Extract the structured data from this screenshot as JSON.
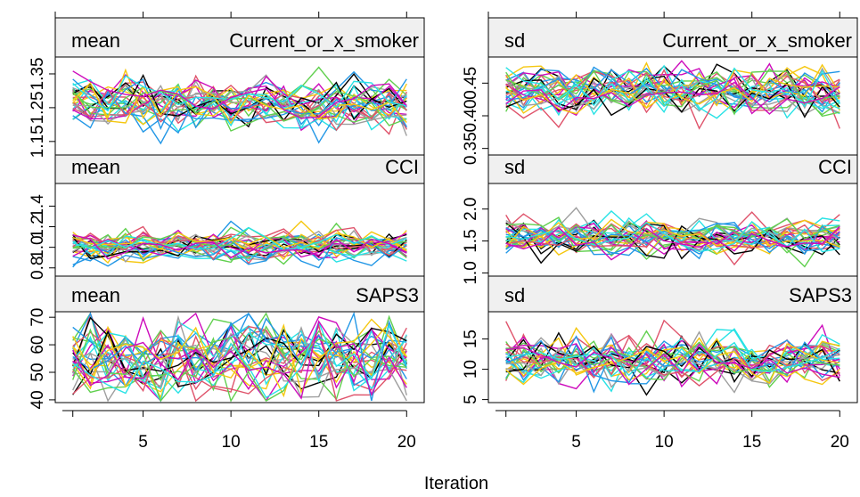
{
  "figure": {
    "xlabel": "Iteration"
  },
  "chart_data": [
    {
      "type": "line",
      "stat": "mean",
      "variable": "Current_or_x_smoker",
      "x_ticks": [
        5,
        10,
        15,
        20
      ],
      "y_ticks": [
        1.15,
        1.25,
        1.35
      ],
      "y_tick_labels": [
        "1.15",
        "1.25",
        "1.35"
      ],
      "ylim": [
        1.11,
        1.4
      ],
      "center": 1.26,
      "spread": 0.035
    },
    {
      "type": "line",
      "stat": "sd",
      "variable": "Current_or_x_smoker",
      "x_ticks": [
        5,
        10,
        15,
        20
      ],
      "y_ticks": [
        0.35,
        0.4,
        0.45
      ],
      "y_tick_labels": [
        "0.35",
        "0.40",
        "0.45"
      ],
      "ylim": [
        0.34,
        0.49
      ],
      "center": 0.438,
      "spread": 0.018
    },
    {
      "type": "line",
      "stat": "mean",
      "variable": "CCI",
      "x_ticks": [
        5,
        10,
        15,
        20
      ],
      "y_ticks": [
        0.8,
        1.0,
        1.2,
        1.4
      ],
      "y_tick_labels": [
        "0.8",
        "1.0",
        "1.2",
        "1.4"
      ],
      "ylim": [
        0.72,
        1.62
      ],
      "center": 1.02,
      "spread": 0.07
    },
    {
      "type": "line",
      "stat": "sd",
      "variable": "CCI",
      "x_ticks": [
        5,
        10,
        15,
        20
      ],
      "y_ticks": [
        1.0,
        1.5,
        2.0
      ],
      "y_tick_labels": [
        "1.0",
        "1.5",
        "2.0"
      ],
      "ylim": [
        0.95,
        2.4
      ],
      "center": 1.55,
      "spread": 0.14
    },
    {
      "type": "line",
      "stat": "mean",
      "variable": "SAPS3",
      "x_ticks": [
        5,
        10,
        15,
        20
      ],
      "y_ticks": [
        40,
        50,
        60,
        70
      ],
      "y_tick_labels": [
        "40",
        "50",
        "60",
        "70"
      ],
      "ylim": [
        39,
        72
      ],
      "center": 55,
      "spread": 7
    },
    {
      "type": "line",
      "stat": "sd",
      "variable": "SAPS3",
      "x_ticks": [
        5,
        10,
        15,
        20
      ],
      "y_ticks": [
        5,
        10,
        15
      ],
      "y_tick_labels": [
        "5",
        "10",
        "15"
      ],
      "ylim": [
        4.5,
        19.5
      ],
      "center": 11.5,
      "spread": 2.0
    }
  ],
  "series": {
    "count": 30,
    "iterations": 20,
    "colors": [
      "#000000",
      "#DF536B",
      "#61D04F",
      "#2297E6",
      "#28E2E5",
      "#CD0BBC",
      "#F5C710",
      "#9E9E9E",
      "#DF536B",
      "#2297E6",
      "#61D04F",
      "#F5C710",
      "#000000",
      "#CD0BBC",
      "#28E2E5",
      "#9E9E9E",
      "#DF536B",
      "#61D04F",
      "#2297E6",
      "#F5C710",
      "#28E2E5",
      "#CD0BBC",
      "#000000",
      "#9E9E9E",
      "#DF536B",
      "#2297E6",
      "#61D04F",
      "#F5C710",
      "#28E2E5",
      "#CD0BBC"
    ]
  }
}
